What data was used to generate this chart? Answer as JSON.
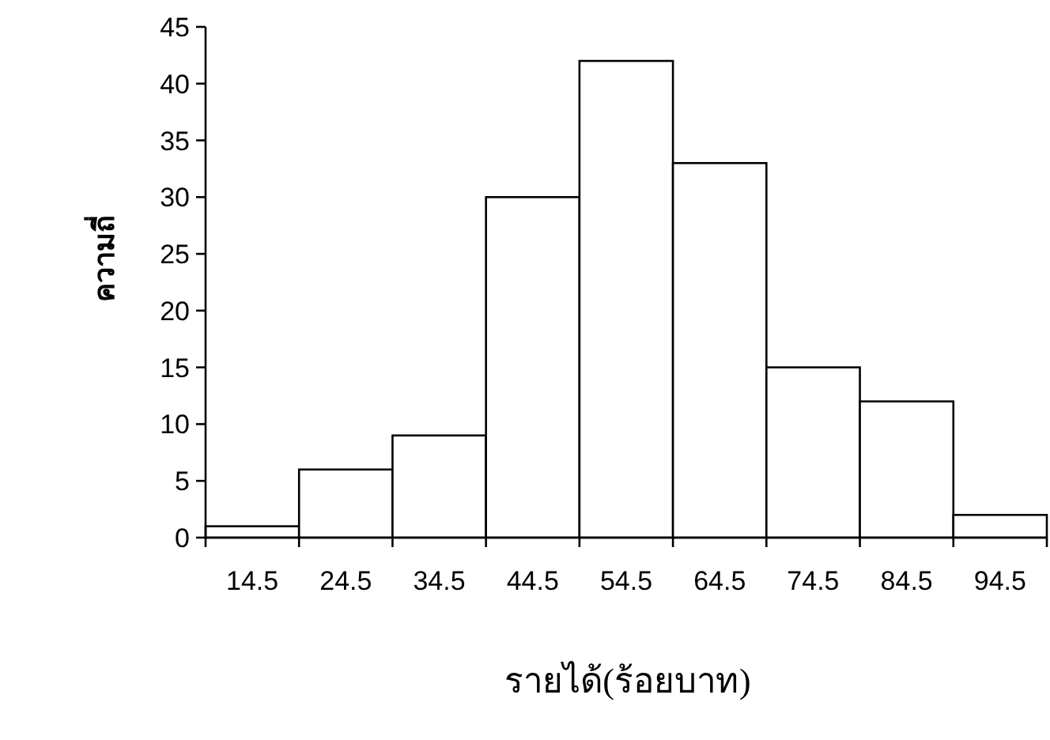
{
  "chart_data": {
    "type": "bar",
    "categories": [
      "14.5",
      "24.5",
      "34.5",
      "44.5",
      "54.5",
      "64.5",
      "74.5",
      "84.5",
      "94.5"
    ],
    "values": [
      1,
      6,
      9,
      30,
      42,
      33,
      15,
      12,
      2
    ],
    "color": "#ffffff",
    "ylim": [
      0,
      45
    ],
    "yticks": [
      0,
      5,
      10,
      15,
      20,
      25,
      30,
      35,
      40,
      45
    ],
    "xlabel": "รายได้(ร้อยบาท)",
    "ylabel": "ความถี่",
    "grid": false
  }
}
